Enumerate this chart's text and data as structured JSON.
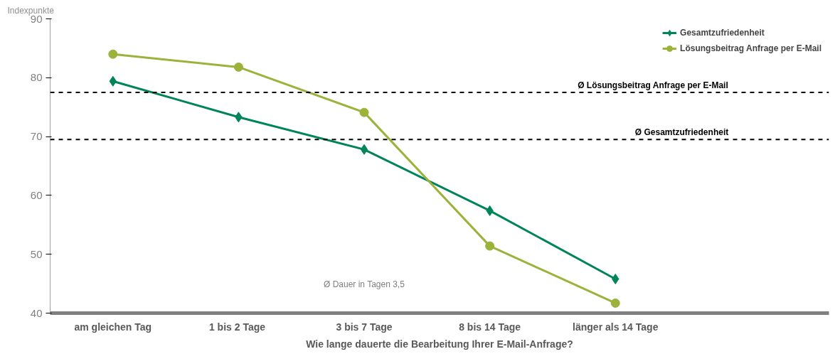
{
  "chart_data": {
    "type": "line",
    "ylabel": "Indexpunkte",
    "xlabel": "Wie lange dauerte die Bearbeitung Ihrer E-Mail-Anfrage?",
    "categories": [
      "am gleichen Tag",
      "1  bis 2 Tage",
      "3 bis 7 Tage",
      "8 bis 14 Tage",
      "länger als 14 Tage"
    ],
    "series": [
      {
        "name": "Gesamtzufriedenheit",
        "color": "#00845a",
        "marker": "diamond",
        "values": [
          79.4,
          73.3,
          67.8,
          57.4,
          45.8
        ]
      },
      {
        "name": "Lösungsbeitrag Anfrage per E-Mail",
        "color": "#9bb33a",
        "marker": "circle",
        "values": [
          84.0,
          81.8,
          74.1,
          51.4,
          41.7
        ]
      }
    ],
    "ylim": [
      40,
      90
    ],
    "yticks": [
      40,
      50,
      60,
      70,
      80,
      90
    ],
    "grid": false,
    "legend": "top right",
    "line_style": "solid",
    "ref_lines": [
      {
        "axis": "y",
        "value": 77.5,
        "label": "Ø Lösungsbeitrag Anfrage per E-Mail",
        "line_style": "dashed",
        "color": "#000000"
      },
      {
        "axis": "y",
        "value": 69.5,
        "label": "Ø Gesamtzufriedenheit",
        "line_style": "dashed",
        "color": "#000000"
      }
    ],
    "annotations": [
      "Ø Dauer in Tagen 3,5"
    ]
  }
}
